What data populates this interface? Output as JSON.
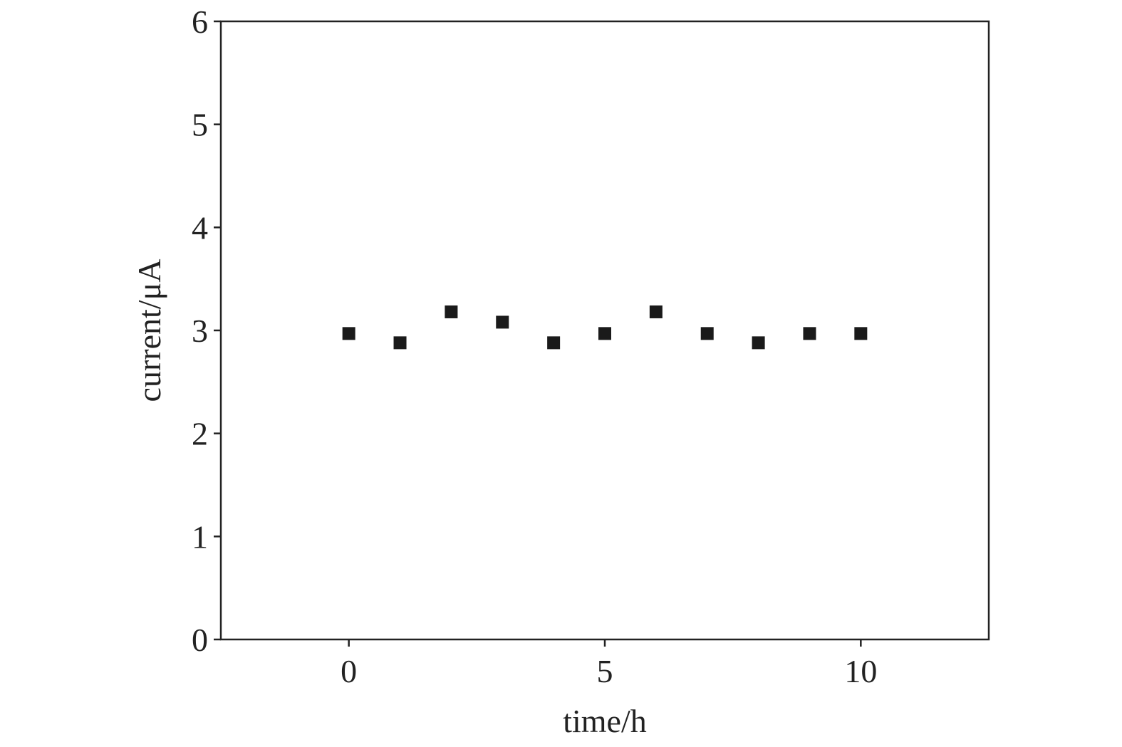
{
  "chart_data": {
    "type": "scatter",
    "x_label": "time/h",
    "y_label": "current/μA",
    "x": [
      0,
      1,
      2,
      3,
      4,
      5,
      6,
      7,
      8,
      9,
      10
    ],
    "values": [
      2.97,
      2.88,
      3.18,
      3.08,
      2.88,
      2.97,
      3.18,
      2.97,
      2.88,
      2.97,
      2.97
    ],
    "color": "#1a1a1a",
    "xlim": [
      -2.5,
      12.5
    ],
    "xticks": [
      0,
      5,
      10
    ],
    "ylim": [
      0,
      6
    ],
    "yticks": [
      0,
      1,
      2,
      3,
      4,
      5,
      6
    ]
  }
}
